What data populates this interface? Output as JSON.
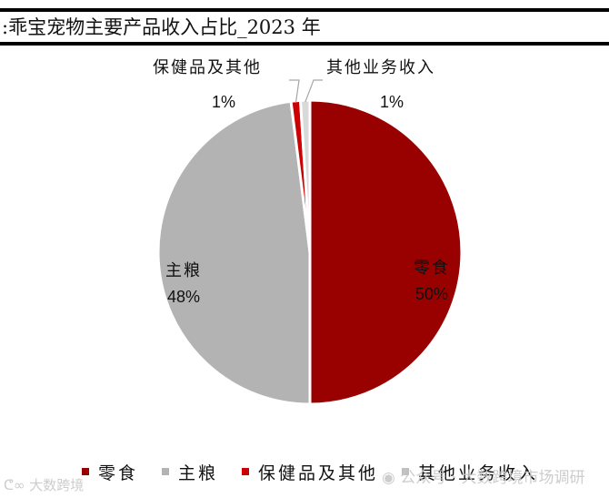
{
  "header": {
    "title": ":乖宝宠物主要产品收入占比_2023 年"
  },
  "chart_data": {
    "type": "pie",
    "title": "乖宝宠物主要产品收入占比_2023 年",
    "categories": [
      "零食",
      "主粮",
      "保健品及其他",
      "其他业务收入"
    ],
    "values": [
      50,
      48,
      1,
      1
    ],
    "labels": [
      "50%",
      "48%",
      "1%",
      "1%"
    ],
    "colors": [
      "#990000",
      "#b3b3b3",
      "#cc0000",
      "#d9d9d9"
    ],
    "legend_position": "bottom",
    "grid": false
  },
  "slices": [
    {
      "name": "零食",
      "pct": "50%",
      "color": "#990000"
    },
    {
      "name": "主粮",
      "pct": "48%",
      "color": "#b3b3b3"
    },
    {
      "name": "保健品及其他",
      "pct": "1%",
      "color": "#cc0000"
    },
    {
      "name": "其他业务收入",
      "pct": "1%",
      "color": "#d9d9d9"
    }
  ],
  "legend": [
    {
      "label": "零食",
      "color": "#990000"
    },
    {
      "label": "主粮",
      "color": "#b3b3b3"
    },
    {
      "label": "保健品及其他",
      "color": "#cc0000"
    },
    {
      "label": "其他业务收入",
      "color": "#bfbfbf"
    }
  ],
  "watermarks": {
    "left": "大数跨境",
    "right": "公众号 · 大数跨境市场调研"
  }
}
